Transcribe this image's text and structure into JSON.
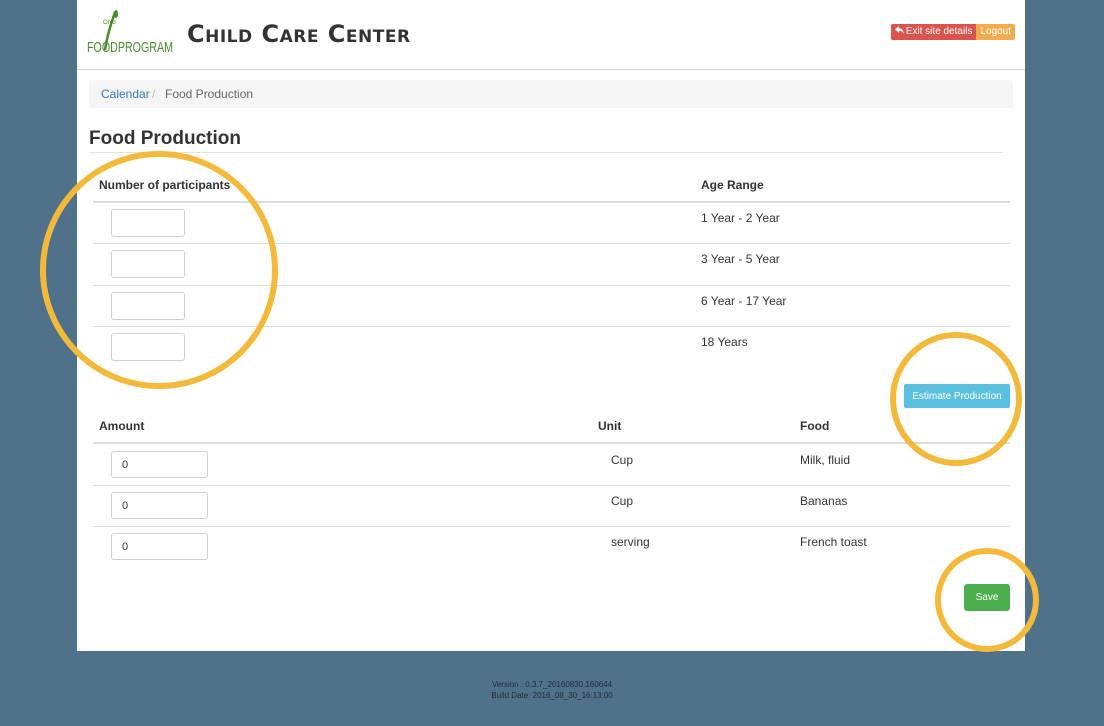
{
  "header": {
    "logo_small": "Ohio",
    "logo_text": "FOODPROGRAM",
    "site_title": "Child Care Center",
    "exit_label": "Exit site details",
    "logout_label": "Logout"
  },
  "breadcrumb": {
    "link": "Calendar",
    "separator": "/",
    "current": "Food Production"
  },
  "page_title": "Food Production",
  "participants_table": {
    "col_participants": "Number of participants",
    "col_age_range": "Age Range",
    "rows": [
      {
        "count": "",
        "age_range": "1 Year - 2 Year"
      },
      {
        "count": "",
        "age_range": "3 Year - 5 Year"
      },
      {
        "count": "",
        "age_range": "6 Year - 17 Year"
      },
      {
        "count": "",
        "age_range": "18 Years"
      }
    ]
  },
  "estimate_label": "Estimate Production",
  "food_table": {
    "col_amount": "Amount",
    "col_unit": "Unit",
    "col_food": "Food",
    "rows": [
      {
        "amount": "0",
        "unit": "Cup",
        "food": "Milk, fluid"
      },
      {
        "amount": "0",
        "unit": "Cup",
        "food": "Bananas"
      },
      {
        "amount": "0",
        "unit": "serving",
        "food": "French toast"
      }
    ]
  },
  "save_label": "Save",
  "footer": {
    "version": "Version : 0.3.7_20160830.160644",
    "build_date": "Build Date: 2016_08_30_16:13:00"
  },
  "colors": {
    "background": "#4f7189",
    "highlight_ring": "#f2b93a",
    "estimate_button": "#5bc0de",
    "save_button": "#4cae4c",
    "exit_button": "#d9534f",
    "logout_button": "#f0ad4e"
  }
}
